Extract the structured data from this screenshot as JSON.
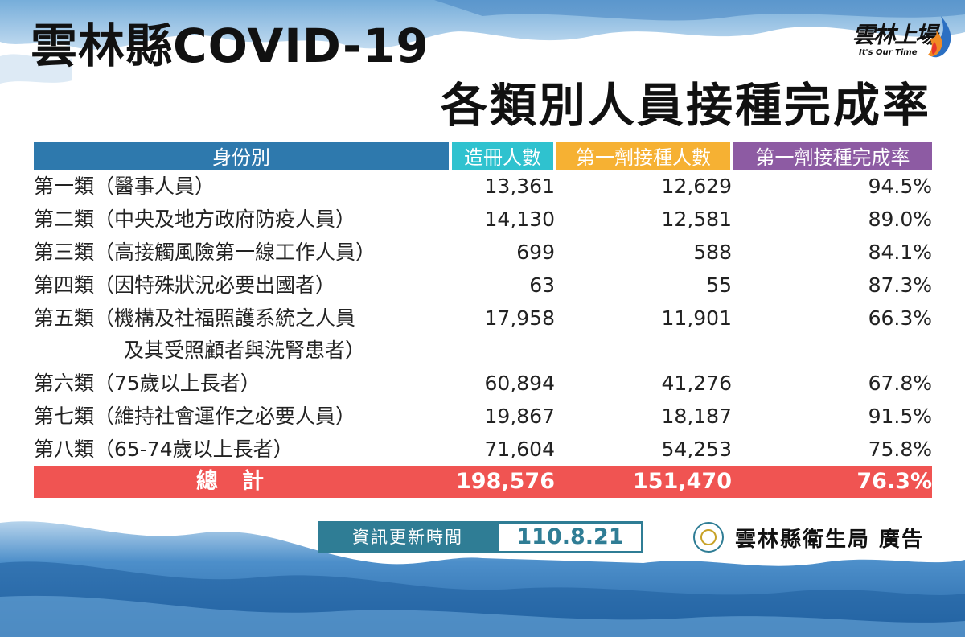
{
  "title": {
    "line1": "雲林縣COVID-19",
    "line2": "各類別人員接種完成率"
  },
  "logo": {
    "text": "雲林上場",
    "subtitle": "It's Our Time"
  },
  "table": {
    "headers": {
      "identity": "身份別",
      "registered": "造冊人數",
      "first_dose": "第一劑接種人數",
      "completion_rate": "第一劑接種完成率"
    },
    "rows": [
      {
        "name": "第一類（醫事人員）",
        "name_line2": "",
        "registered": "13,361",
        "first_dose": "12,629",
        "rate": "94.5%"
      },
      {
        "name": "第二類（中央及地方政府防疫人員）",
        "name_line2": "",
        "registered": "14,130",
        "first_dose": "12,581",
        "rate": "89.0%"
      },
      {
        "name": "第三類（高接觸風險第一線工作人員）",
        "name_line2": "",
        "registered": "699",
        "first_dose": "588",
        "rate": "84.1%"
      },
      {
        "name": "第四類（因特殊狀況必要出國者）",
        "name_line2": "",
        "registered": "63",
        "first_dose": "55",
        "rate": "87.3%"
      },
      {
        "name": "第五類（機構及社福照護系統之人員",
        "name_line2": "及其受照顧者與洗腎患者）",
        "registered": "17,958",
        "first_dose": "11,901",
        "rate": "66.3%"
      },
      {
        "name": "第六類（75歲以上長者）",
        "name_line2": "",
        "registered": "60,894",
        "first_dose": "41,276",
        "rate": "67.8%"
      },
      {
        "name": "第七類（維持社會運作之必要人員）",
        "name_line2": "",
        "registered": "19,867",
        "first_dose": "18,187",
        "rate": "91.5%"
      },
      {
        "name": "第八類（65-74歲以上長者）",
        "name_line2": "",
        "registered": "71,604",
        "first_dose": "54,253",
        "rate": "75.8%"
      }
    ],
    "total": {
      "name": "總計",
      "registered": "198,576",
      "first_dose": "151,470",
      "rate": "76.3%"
    }
  },
  "footer": {
    "update_label": "資訊更新時間",
    "update_value": "110.8.21",
    "bureau": "雲林縣衛生局 廣告",
    "seal_icon": "health-bureau-seal-icon"
  },
  "colors": {
    "header_identity": "#2e79ad",
    "header_registered": "#2fc2cf",
    "header_first_dose": "#f6b133",
    "header_rate": "#8d5ba3",
    "total_row": "#f05452",
    "update_box": "#2f7d95"
  }
}
